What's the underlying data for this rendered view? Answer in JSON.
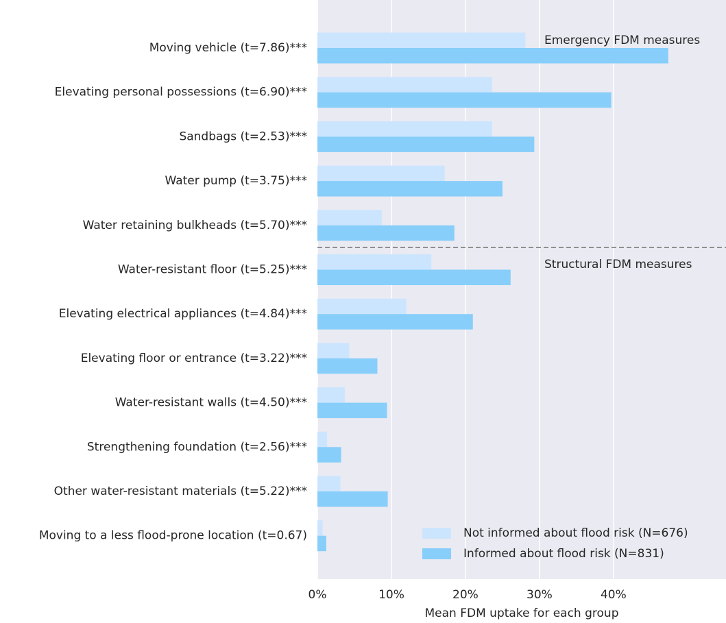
{
  "chart_data": {
    "type": "bar",
    "orientation": "horizontal",
    "categories": [
      "Moving vehicle (t=7.86)***",
      "Elevating personal possessions (t=6.90)***",
      "Sandbags (t=2.53)***",
      "Water pump (t=3.75)***",
      "Water retaining bulkheads (t=5.70)***",
      "Water-resistant floor (t=5.25)***",
      "Elevating electrical appliances (t=4.84)***",
      "Elevating floor or entrance (t=3.22)***",
      "Water-resistant walls (t=4.50)***",
      "Strengthening foundation (t=2.56)***",
      "Other water-resistant materials (t=5.22)***",
      "Moving to a less flood-prone location (t=0.67)"
    ],
    "series": [
      {
        "name": "Not informed about flood risk (N=676)",
        "color": "#cce5ff",
        "values": [
          28.1,
          23.6,
          23.6,
          17.2,
          8.7,
          15.4,
          12.0,
          4.3,
          3.7,
          1.3,
          3.1,
          0.7
        ]
      },
      {
        "name": "Informed about flood risk (N=831)",
        "color": "#87cefa",
        "values": [
          47.4,
          39.7,
          29.3,
          25.0,
          18.5,
          26.1,
          21.0,
          8.1,
          9.4,
          3.2,
          9.5,
          1.2
        ]
      }
    ],
    "xlabel": "Mean FDM uptake for each group",
    "xlim": [
      0,
      55.2
    ],
    "xticks": [
      {
        "value": 0,
        "label": "0%"
      },
      {
        "value": 10,
        "label": "10%"
      },
      {
        "value": 20,
        "label": "20%"
      },
      {
        "value": 30,
        "label": "30%"
      },
      {
        "value": 40,
        "label": "40%"
      }
    ],
    "annotations": [
      "Emergency FDM measures",
      "Structural FDM measures"
    ],
    "grid": true,
    "legend": "lower right"
  }
}
